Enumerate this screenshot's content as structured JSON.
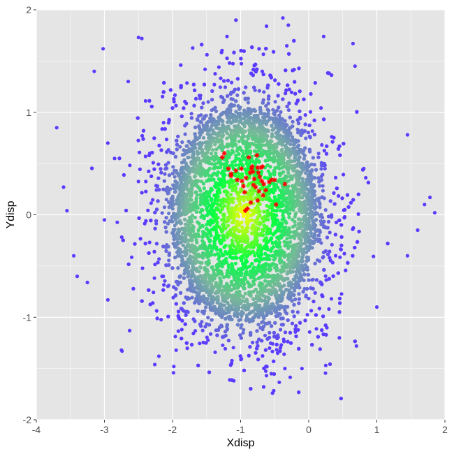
{
  "chart_data": {
    "type": "scatter",
    "title": "",
    "xlabel": "Xdisp",
    "ylabel": "Ydisp",
    "xlim": [
      -4,
      2
    ],
    "ylim": [
      -2,
      2
    ],
    "x_ticks": [
      "-4",
      "-3",
      "-2",
      "-1",
      "0",
      "1",
      "2"
    ],
    "y_ticks": [
      "-2",
      "-1",
      "0",
      "1",
      "2"
    ],
    "grid": true,
    "panel_background": "#e5e5e5",
    "grid_color": "#ffffff",
    "background_cloud": {
      "description_of_pattern": "dense circular point cloud",
      "center": [
        -0.95,
        0.0
      ],
      "approx_radius": 1.0,
      "color_scale": [
        "#ffff00",
        "#00ff44",
        "#77b899",
        "#5b3bff"
      ],
      "outlier_points": [
        [
          -3.7,
          0.85
        ],
        [
          -3.6,
          0.27
        ],
        [
          -3.55,
          0.04
        ],
        [
          -3.45,
          -0.4
        ],
        [
          -3.4,
          -0.6
        ],
        [
          -3.25,
          -0.66
        ],
        [
          -3.15,
          1.4
        ],
        [
          -3.02,
          1.62
        ],
        [
          -2.95,
          0.7
        ],
        [
          -2.75,
          -1.32
        ],
        [
          -2.2,
          -1.38
        ],
        [
          -1.98,
          -1.48
        ],
        [
          -1.1,
          -1.62
        ],
        [
          -0.55,
          -1.55
        ],
        [
          -0.35,
          -1.5
        ],
        [
          -0.1,
          -1.5
        ],
        [
          0.25,
          -1.47
        ],
        [
          0.45,
          -1.2
        ],
        [
          0.7,
          -1.28
        ],
        [
          1.0,
          -0.9
        ],
        [
          1.45,
          -0.4
        ],
        [
          1.6,
          -0.15
        ],
        [
          1.7,
          0.1
        ],
        [
          1.85,
          0.02
        ],
        [
          1.78,
          0.17
        ],
        [
          1.45,
          0.78
        ],
        [
          0.65,
          1.67
        ],
        [
          0.68,
          1.45
        ],
        [
          0.22,
          1.74
        ],
        [
          -0.3,
          1.85
        ],
        [
          -0.38,
          1.92
        ],
        [
          -0.62,
          1.84
        ],
        [
          -1.2,
          1.74
        ],
        [
          -2.5,
          1.73
        ],
        [
          -2.45,
          1.72
        ],
        [
          -2.65,
          1.3
        ],
        [
          -2.85,
          0.55
        ],
        [
          -3.0,
          -0.05
        ],
        [
          -2.95,
          -0.83
        ]
      ]
    },
    "series": [
      {
        "marker": "asterisk",
        "color": "#ff0000",
        "points": [
          [
            -1.27,
            0.56
          ],
          [
            -1.24,
            0.6
          ],
          [
            -1.18,
            0.45
          ],
          [
            -1.14,
            0.4
          ],
          [
            -1.14,
            0.38
          ],
          [
            -1.07,
            0.43
          ],
          [
            -1.05,
            0.34
          ],
          [
            -0.99,
            0.45
          ],
          [
            -0.98,
            0.33
          ],
          [
            -0.96,
            0.28
          ],
          [
            -0.94,
            0.22
          ],
          [
            -0.92,
            0.36
          ],
          [
            -0.88,
            0.56
          ],
          [
            -0.86,
            0.41
          ],
          [
            -0.84,
            0.45
          ],
          [
            -0.83,
            0.47
          ],
          [
            -0.82,
            0.42
          ],
          [
            -0.81,
            0.29
          ],
          [
            -0.8,
            0.35
          ],
          [
            -0.78,
            0.27
          ],
          [
            -0.76,
            0.58
          ],
          [
            -0.75,
            0.46
          ],
          [
            -0.74,
            0.41
          ],
          [
            -0.73,
            0.23
          ],
          [
            -0.72,
            0.37
          ],
          [
            -0.7,
            0.46
          ],
          [
            -0.69,
            0.33
          ],
          [
            -0.68,
            0.47
          ],
          [
            -0.67,
            0.19
          ],
          [
            -0.66,
            0.3
          ],
          [
            -0.63,
            0.24
          ],
          [
            -0.58,
            0.32
          ],
          [
            -0.55,
            0.34
          ],
          [
            -0.5,
            0.34
          ],
          [
            -0.48,
            0.1
          ],
          [
            -0.35,
            0.3
          ],
          [
            -0.93,
            0.04
          ],
          [
            -0.9,
            0.06
          ],
          [
            -0.85,
            0.12
          ],
          [
            -0.75,
            0.14
          ]
        ]
      }
    ]
  }
}
